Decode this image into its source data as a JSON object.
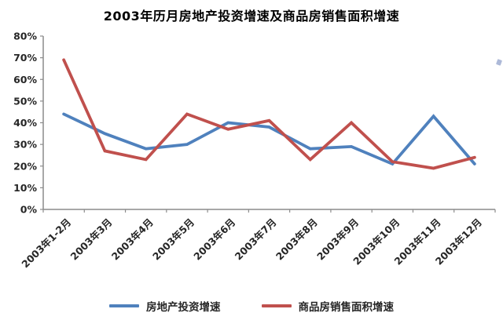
{
  "chart_data": {
    "type": "line",
    "title": "2003年历月房地产投资增速及商品房销售面积增速",
    "categories": [
      "2003年1-2月",
      "2003年3月",
      "2003年4月",
      "2003年5月",
      "2003年6月",
      "2003年7月",
      "2003年8月",
      "2003年9月",
      "2003年10月",
      "2003年11月",
      "2003年12月"
    ],
    "series": [
      {
        "name": "房地产投资增速",
        "color": "#4F81BD",
        "values": [
          44,
          35,
          28,
          30,
          40,
          38,
          28,
          29,
          21,
          43,
          21
        ]
      },
      {
        "name": "商品房销售面积增速",
        "color": "#C0504D",
        "values": [
          69,
          27,
          23,
          44,
          37,
          41,
          23,
          40,
          22,
          19,
          24
        ]
      }
    ],
    "y_axis": {
      "min": 0,
      "max": 80,
      "step": 10,
      "format": "percent",
      "tick_labels": [
        "0%",
        "10%",
        "20%",
        "30%",
        "40%",
        "50%",
        "60%",
        "70%",
        "80%"
      ]
    },
    "x_axis": {
      "label_rotation_deg": -45
    },
    "legend_position": "bottom",
    "grid": false,
    "background": "#FFFFFF",
    "axis_color": "#8C8C8C"
  }
}
